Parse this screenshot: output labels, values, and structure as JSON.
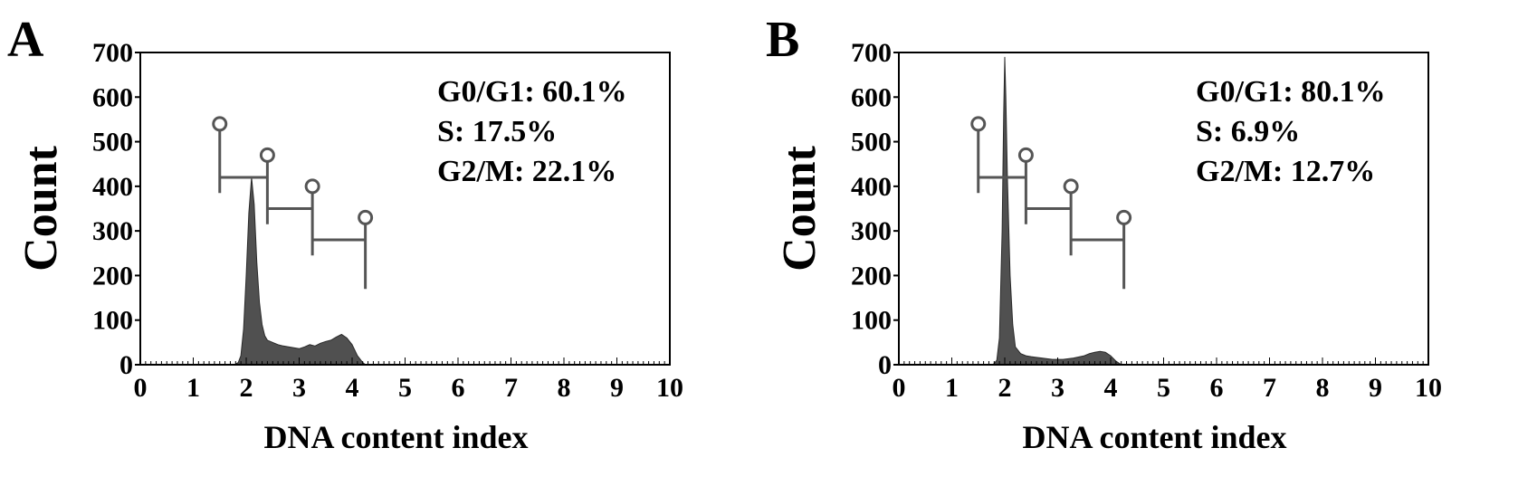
{
  "chart_data": [
    {
      "type": "area",
      "panel_label": "A",
      "xlabel": "DNA content index",
      "ylabel": "Count",
      "xlim": [
        0,
        10
      ],
      "ylim": [
        0,
        700
      ],
      "xticks": [
        "0",
        "1",
        "2",
        "3",
        "4",
        "5",
        "6",
        "7",
        "8",
        "9",
        "10"
      ],
      "yticks": [
        "0",
        "100",
        "200",
        "300",
        "400",
        "500",
        "600",
        "700"
      ],
      "fill_color": "#505050",
      "annotations": [
        "G0/G1: 60.1%",
        "S: 17.5%",
        "G2/M: 22.1%"
      ],
      "histogram": {
        "x": [
          1.78,
          1.85,
          1.9,
          1.95,
          2.0,
          2.05,
          2.1,
          2.15,
          2.2,
          2.25,
          2.3,
          2.35,
          2.4,
          2.5,
          2.6,
          2.7,
          2.8,
          2.9,
          3.0,
          3.1,
          3.2,
          3.3,
          3.4,
          3.5,
          3.6,
          3.7,
          3.8,
          3.9,
          4.0,
          4.1,
          4.2,
          4.25
        ],
        "y": [
          0,
          5,
          20,
          80,
          200,
          340,
          420,
          360,
          230,
          140,
          90,
          65,
          55,
          50,
          45,
          42,
          40,
          38,
          36,
          40,
          45,
          42,
          48,
          52,
          55,
          62,
          68,
          60,
          45,
          20,
          5,
          0
        ]
      },
      "gates": [
        {
          "x_start": 1.5,
          "x_end": 2.4,
          "y_bar": 420,
          "y_top": 540,
          "y_bottom": 385
        },
        {
          "x_start": 2.4,
          "x_end": 3.25,
          "y_bar": 350,
          "y_top": 470,
          "y_bottom": 315
        },
        {
          "x_start": 3.25,
          "x_end": 4.25,
          "y_bar": 280,
          "y_top": 400,
          "y_bottom": 245
        }
      ],
      "gate_end_marker": {
        "x": 4.25,
        "y_top": 330,
        "y_bottom": 170
      }
    },
    {
      "type": "area",
      "panel_label": "B",
      "xlabel": "DNA content index",
      "ylabel": "Count",
      "xlim": [
        0,
        10
      ],
      "ylim": [
        0,
        700
      ],
      "xticks": [
        "0",
        "1",
        "2",
        "3",
        "4",
        "5",
        "6",
        "7",
        "8",
        "9",
        "10"
      ],
      "yticks": [
        "0",
        "100",
        "200",
        "300",
        "400",
        "500",
        "600",
        "700"
      ],
      "fill_color": "#505050",
      "annotations": [
        "G0/G1: 80.1%",
        "S: 6.9%",
        "G2/M: 12.7%"
      ],
      "histogram": {
        "x": [
          1.78,
          1.85,
          1.9,
          1.95,
          1.98,
          2.0,
          2.02,
          2.05,
          2.1,
          2.15,
          2.2,
          2.3,
          2.4,
          2.5,
          2.7,
          2.9,
          3.1,
          3.3,
          3.5,
          3.6,
          3.7,
          3.8,
          3.9,
          4.0,
          4.1,
          4.2
        ],
        "y": [
          0,
          10,
          60,
          300,
          560,
          690,
          600,
          420,
          200,
          90,
          40,
          25,
          20,
          18,
          15,
          12,
          12,
          15,
          20,
          25,
          28,
          30,
          28,
          20,
          8,
          0
        ]
      },
      "gates": [
        {
          "x_start": 1.5,
          "x_end": 2.4,
          "y_bar": 420,
          "y_top": 540,
          "y_bottom": 385
        },
        {
          "x_start": 2.4,
          "x_end": 3.25,
          "y_bar": 350,
          "y_top": 470,
          "y_bottom": 315
        },
        {
          "x_start": 3.25,
          "x_end": 4.25,
          "y_bar": 280,
          "y_top": 400,
          "y_bottom": 245
        }
      ],
      "gate_end_marker": {
        "x": 4.25,
        "y_top": 330,
        "y_bottom": 170
      }
    }
  ]
}
